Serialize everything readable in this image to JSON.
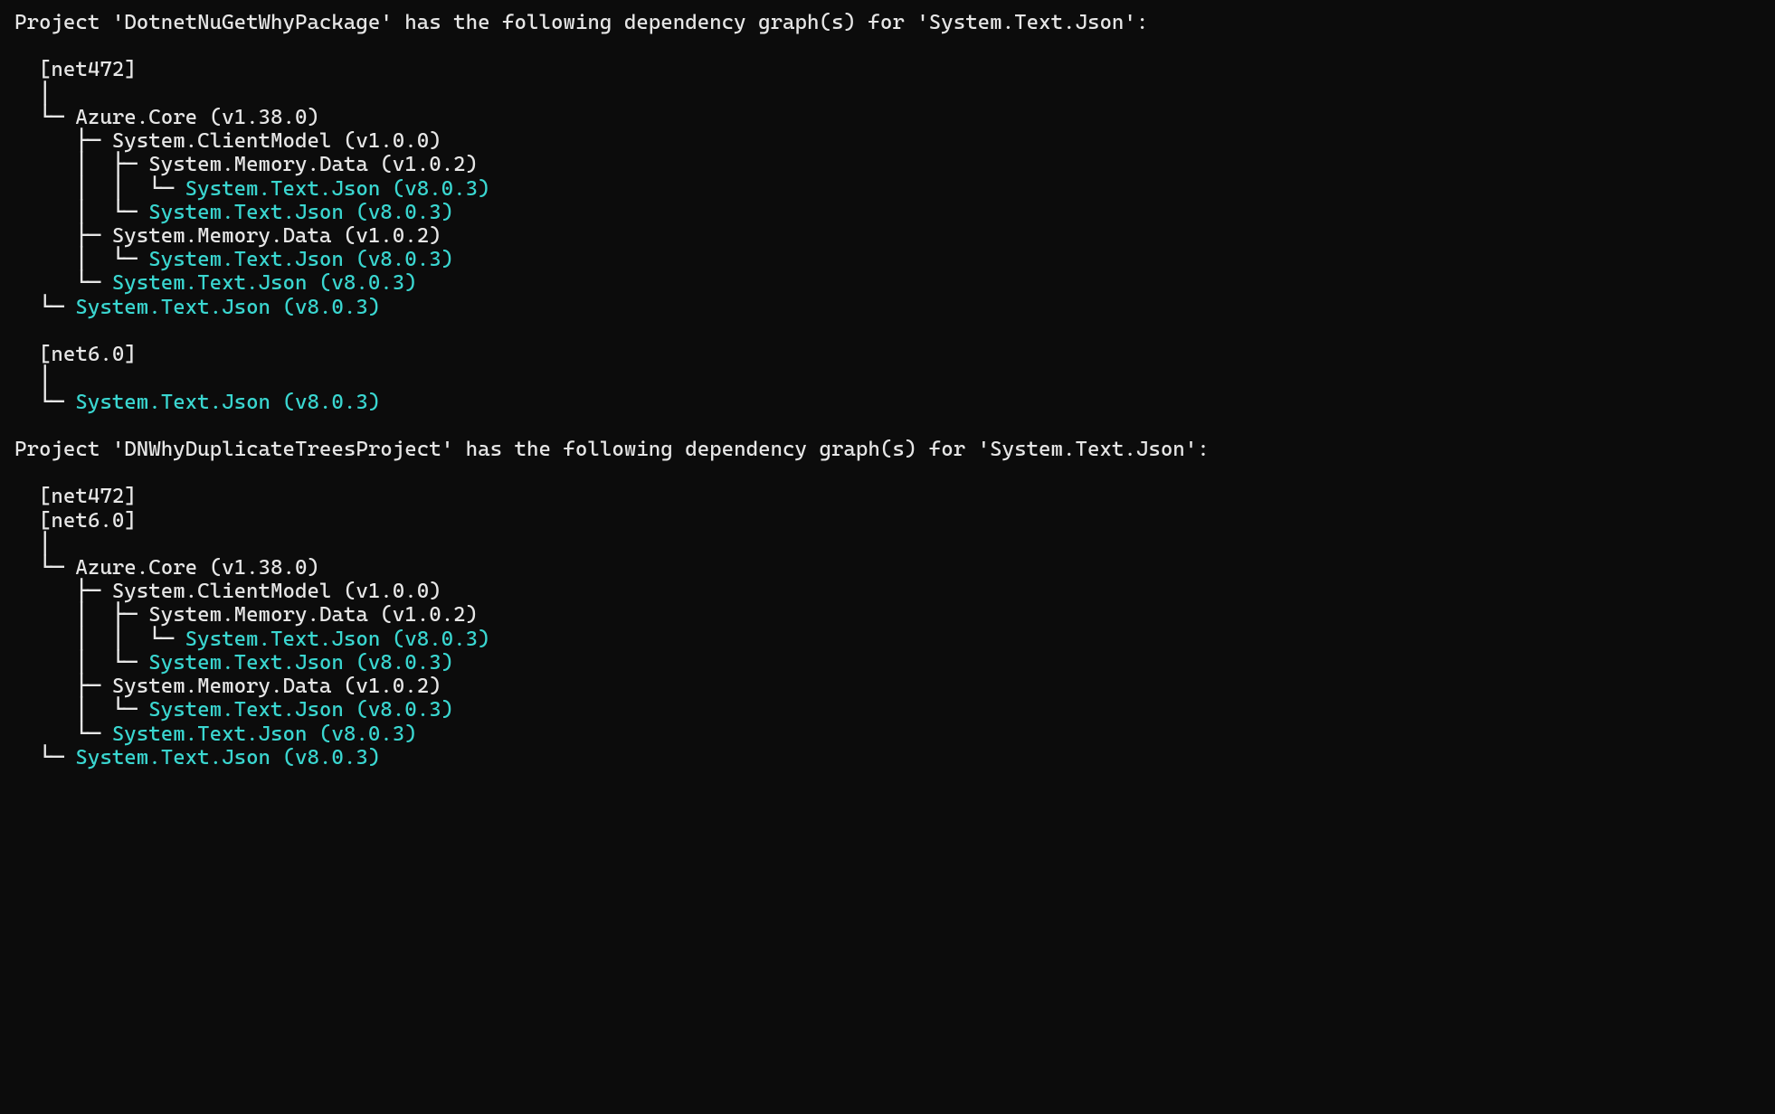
{
  "colors": {
    "background": "#0c0c0c",
    "text": "#e6e6e6",
    "highlight": "#3ad6d0"
  },
  "font": {
    "family_stack": "Cascadia Mono, Cascadia Code, Consolas, Menlo, DejaVu Sans Mono, monospace",
    "approx_size_pt": 17
  },
  "target_package": "System.Text.Json",
  "target_version": "v8.0.3",
  "tree_glyphs": {
    "vbar": "│",
    "branch": "├─",
    "last": "└─",
    "last_single": "└",
    "vbar_branch": "│ ├─",
    "vbar_last": "│ └─"
  },
  "projects": [
    {
      "header_prefix": "Project '",
      "name": "DotnetNuGetWhyPackage",
      "header_mid": "' has the following dependency graph(s) for '",
      "header_pkg": "System.Text.Json",
      "header_suffix": "':",
      "frameworks": [
        {
          "label": "[net472]",
          "lines": [
            {
              "prefix": "  │",
              "text": ""
            },
            {
              "prefix": "  └─ ",
              "text": "Azure.Core (v1.38.0)"
            },
            {
              "prefix": "     ├─ ",
              "text": "System.ClientModel (v1.0.0)"
            },
            {
              "prefix": "     │  ├─ ",
              "text": "System.Memory.Data (v1.0.2)"
            },
            {
              "prefix": "     │  │  └─ ",
              "text": "System.Text.Json (v8.0.3)",
              "hl": true
            },
            {
              "prefix": "     │  └─ ",
              "text": "System.Text.Json (v8.0.3)",
              "hl": true
            },
            {
              "prefix": "     ├─ ",
              "text": "System.Memory.Data (v1.0.2)"
            },
            {
              "prefix": "     │  └─ ",
              "text": "System.Text.Json (v8.0.3)",
              "hl": true
            },
            {
              "prefix": "     └─ ",
              "text": "System.Text.Json (v8.0.3)",
              "hl": true
            },
            {
              "prefix": "  └─ ",
              "text": "System.Text.Json (v8.0.3)",
              "hl": true
            }
          ]
        },
        {
          "label": "[net6.0]",
          "lines": [
            {
              "prefix": "  │",
              "text": ""
            },
            {
              "prefix": "  └─ ",
              "text": "System.Text.Json (v8.0.3)",
              "hl": true
            }
          ]
        }
      ]
    },
    {
      "header_prefix": "Project '",
      "name": "DNWhyDuplicateTreesProject",
      "header_mid": "' has the following dependency graph(s) for '",
      "header_pkg": "System.Text.Json",
      "header_suffix": "':",
      "frameworks": [
        {
          "label": "[net472]",
          "lines": []
        },
        {
          "label": "[net6.0]",
          "lines": [
            {
              "prefix": "  │",
              "text": ""
            },
            {
              "prefix": "  └─ ",
              "text": "Azure.Core (v1.38.0)"
            },
            {
              "prefix": "     ├─ ",
              "text": "System.ClientModel (v1.0.0)"
            },
            {
              "prefix": "     │  ├─ ",
              "text": "System.Memory.Data (v1.0.2)"
            },
            {
              "prefix": "     │  │  └─ ",
              "text": "System.Text.Json (v8.0.3)",
              "hl": true
            },
            {
              "prefix": "     │  └─ ",
              "text": "System.Text.Json (v8.0.3)",
              "hl": true
            },
            {
              "prefix": "     ├─ ",
              "text": "System.Memory.Data (v1.0.2)"
            },
            {
              "prefix": "     │  └─ ",
              "text": "System.Text.Json (v8.0.3)",
              "hl": true
            },
            {
              "prefix": "     └─ ",
              "text": "System.Text.Json (v8.0.3)",
              "hl": true
            },
            {
              "prefix": "  └─ ",
              "text": "System.Text.Json (v8.0.3)",
              "hl": true
            }
          ]
        }
      ]
    }
  ]
}
